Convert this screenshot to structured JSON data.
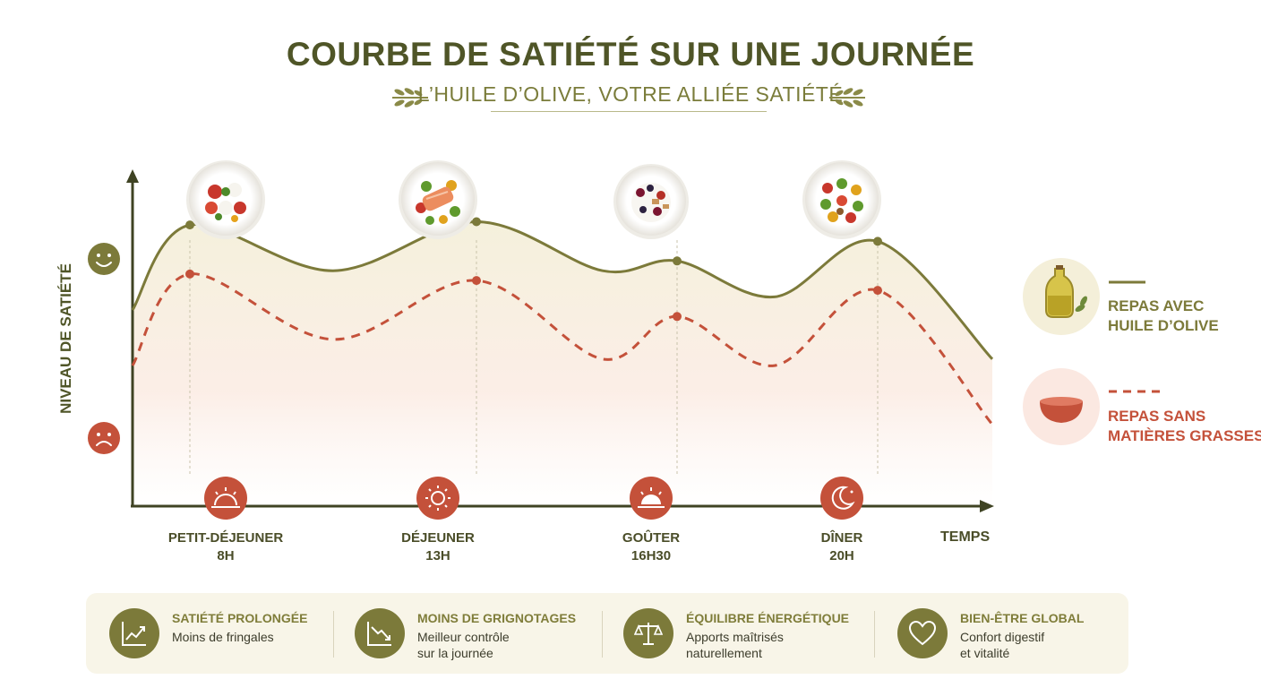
{
  "title": "COURBE DE SATIÉTÉ SUR UNE JOURNÉE",
  "subtitle": "L’HUILE D’OLIVE, VOTRE ALLIÉE SATIÉTÉ",
  "colors": {
    "olive": "#7c7a3a",
    "dark_olive": "#4f5527",
    "terracotta": "#c4513a",
    "fill_top": "#f5f1de",
    "fill_bottom": "#fbe9e3"
  },
  "chart_data": {
    "type": "line",
    "ylabel": "NIVEAU DE SATIÉTÉ",
    "xlabel": "TEMPS",
    "y_axis_icons": [
      "smiling-face-icon",
      "sad-face-icon"
    ],
    "categories": [
      {
        "name": "PETIT-DÉJEUNER",
        "time": "8H",
        "icon": "sunrise-icon",
        "plate": "caprese-salad-plate"
      },
      {
        "name": "DÉJEUNER",
        "time": "13H",
        "icon": "sun-icon",
        "plate": "salmon-vegetables-plate"
      },
      {
        "name": "GOÛTER",
        "time": "16H30",
        "icon": "sunset-icon",
        "plate": "yogurt-berries-plate"
      },
      {
        "name": "DÎNER",
        "time": "20H",
        "icon": "moon-icon",
        "plate": "vegetable-salad-plate"
      }
    ],
    "ylim": [
      0,
      10
    ],
    "series": [
      {
        "name": "REPAS AVEC HUILE D’OLIVE",
        "line_style": "solid",
        "color": "#7c7a3a",
        "icon": "olive-oil-bottle-icon",
        "x": [
          7,
          8,
          10.5,
          13,
          15.2,
          16.5,
          18.2,
          20,
          22
        ],
        "values": [
          6.0,
          8.6,
          7.2,
          8.7,
          7.2,
          7.5,
          6.4,
          8.1,
          4.5
        ]
      },
      {
        "name": "REPAS SANS MATIÈRES GRASSES",
        "line_style": "dashed",
        "color": "#c4513a",
        "icon": "empty-bowl-icon",
        "x": [
          7,
          8,
          10.5,
          13,
          15.2,
          16.5,
          18.2,
          20,
          22
        ],
        "values": [
          4.3,
          7.1,
          5.1,
          6.9,
          4.5,
          5.8,
          4.3,
          6.6,
          2.5
        ]
      }
    ]
  },
  "legend": [
    {
      "label_line1": "REPAS AVEC",
      "label_line2": "HUILE D’OLIVE"
    },
    {
      "label_line1": "REPAS SANS",
      "label_line2": "MATIÈRES GRASSES"
    }
  ],
  "benefits": [
    {
      "title": "SATIÉTÉ PROLONGÉE",
      "line1": "Moins de fringales",
      "line2": "",
      "icon": "trend-up-chart-icon"
    },
    {
      "title": "MOINS DE GRIGNOTAGES",
      "line1": "Meilleur contrôle",
      "line2": "sur la journée",
      "icon": "trend-down-chart-icon"
    },
    {
      "title": "ÉQUILIBRE ÉNERGÉTIQUE",
      "line1": "Apports maîtrisés",
      "line2": "naturellement",
      "icon": "balance-scale-icon"
    },
    {
      "title": "BIEN-ÊTRE GLOBAL",
      "line1": "Confort digestif",
      "line2": "et vitalité",
      "icon": "heart-icon"
    }
  ]
}
